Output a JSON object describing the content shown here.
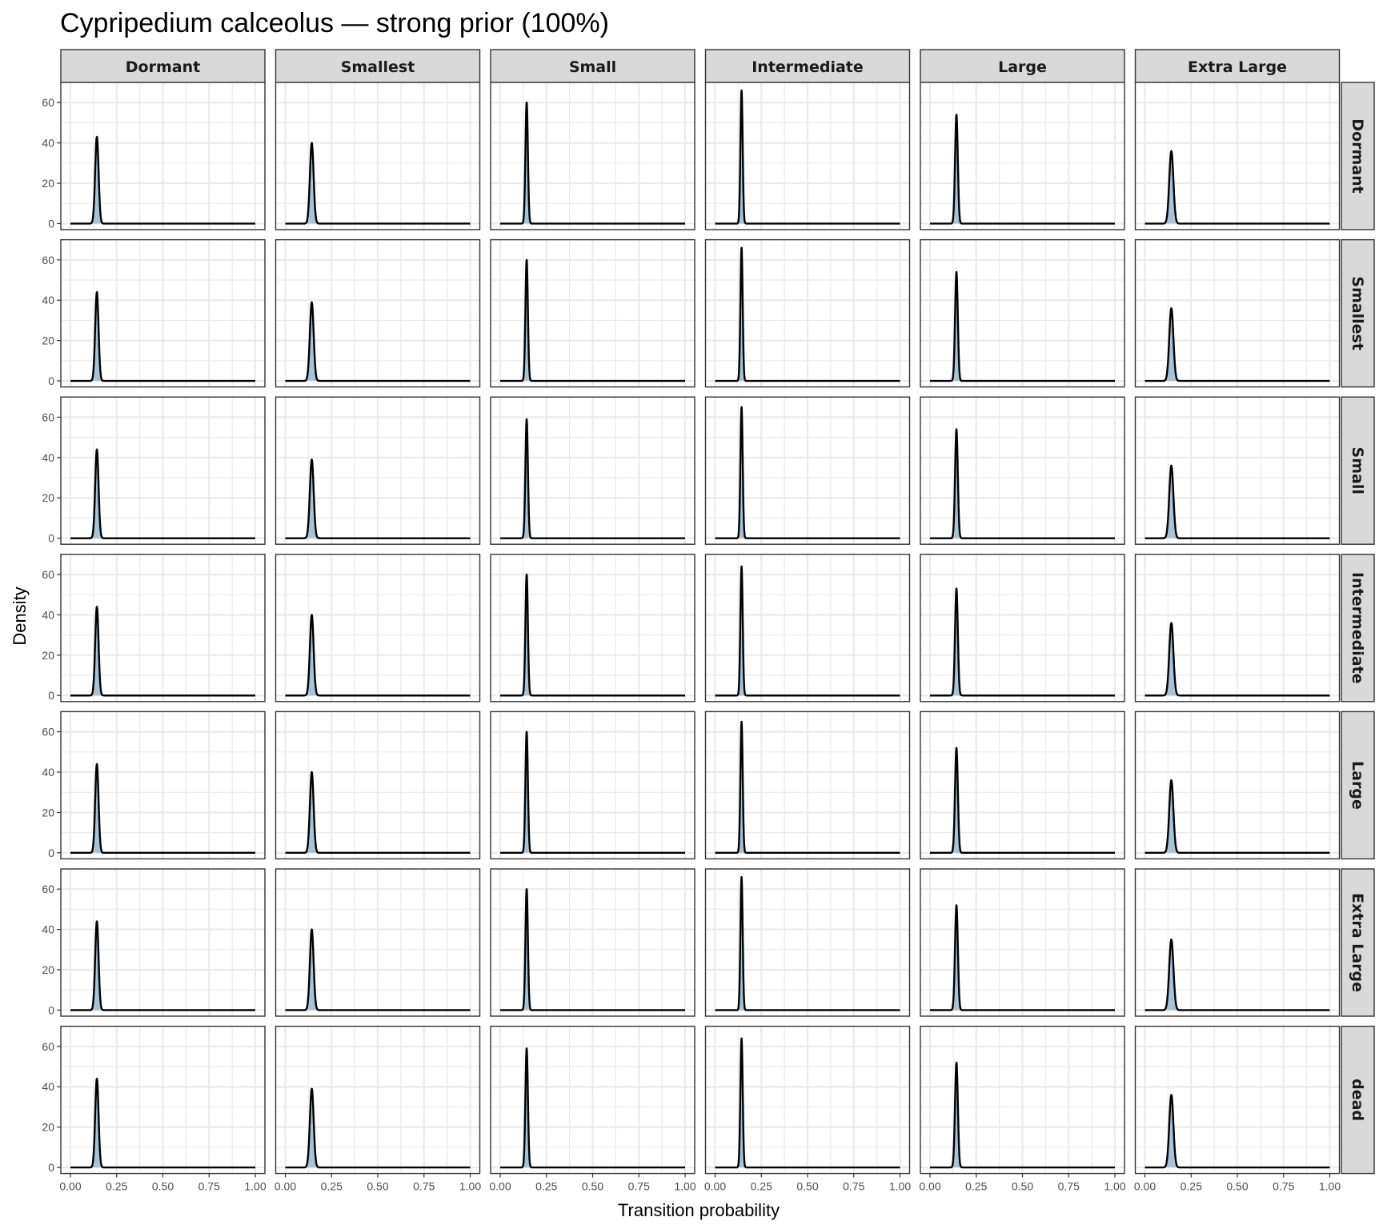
{
  "chart_data": {
    "type": "area",
    "title": "Cypripedium calceolus — strong prior (100%)",
    "xlabel": "Transition probability",
    "ylabel": "Density",
    "xlim": [
      0,
      1
    ],
    "ylim": [
      -3,
      70
    ],
    "x_ticks": [
      "0.00",
      "0.25",
      "0.50",
      "0.75",
      "1.00"
    ],
    "y_ticks": [
      "0",
      "20",
      "40",
      "60"
    ],
    "grid": true,
    "legend": "none",
    "colors": {
      "fill": "#a6c4d9",
      "line": "#000000",
      "strip": "#d9d9d9",
      "grid": "#ebebeb",
      "border": "#333333"
    },
    "column_facets": [
      "Dormant",
      "Smallest",
      "Small",
      "Intermediate",
      "Large",
      "Extra Large"
    ],
    "row_facets": [
      "Dormant",
      "Smallest",
      "Small",
      "Intermediate",
      "Large",
      "Extra Large",
      "dead"
    ],
    "peak_location": 0.143,
    "peak_density": [
      [
        43,
        40,
        60,
        66,
        54,
        36
      ],
      [
        44,
        39,
        60,
        66,
        54,
        36
      ],
      [
        44,
        39,
        59,
        65,
        54,
        36
      ],
      [
        44,
        40,
        60,
        64,
        53,
        36
      ],
      [
        44,
        40,
        60,
        65,
        52,
        36
      ],
      [
        44,
        40,
        60,
        66,
        52,
        35
      ],
      [
        44,
        39,
        59,
        64,
        52,
        36
      ]
    ]
  }
}
